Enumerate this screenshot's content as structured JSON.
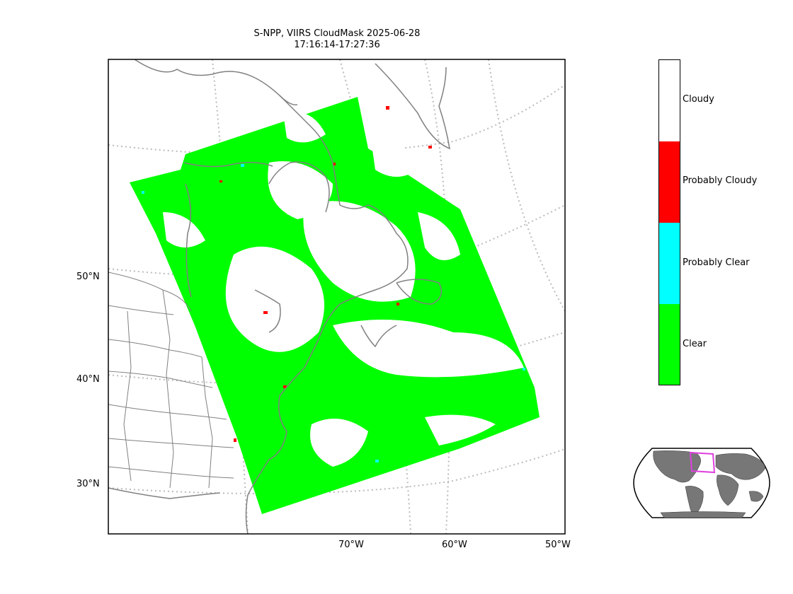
{
  "title": {
    "line1": "S-NPP, VIIRS CloudMask 2025-06-28",
    "line2": "17:16:14-17:27:36"
  },
  "map": {
    "lat_labels": [
      "50°N",
      "40°N",
      "30°N"
    ],
    "lon_labels": [
      "70°W",
      "60°W",
      "50°W"
    ],
    "border_color": "#000000",
    "coastline_color": "#808080",
    "state_border_color": "#808080",
    "graticule_color": "#bbbbbb"
  },
  "legend": {
    "categories": [
      {
        "label": "Cloudy",
        "color": "#ffffff"
      },
      {
        "label": "Probably Cloudy",
        "color": "#ff0000"
      },
      {
        "label": "Probably Clear",
        "color": "#00ffff"
      },
      {
        "label": "Clear",
        "color": "#00ff00"
      }
    ]
  },
  "inset": {
    "land_color": "#777777",
    "ocean_color": "#ffffff",
    "region_box_color": "#e040e0"
  }
}
